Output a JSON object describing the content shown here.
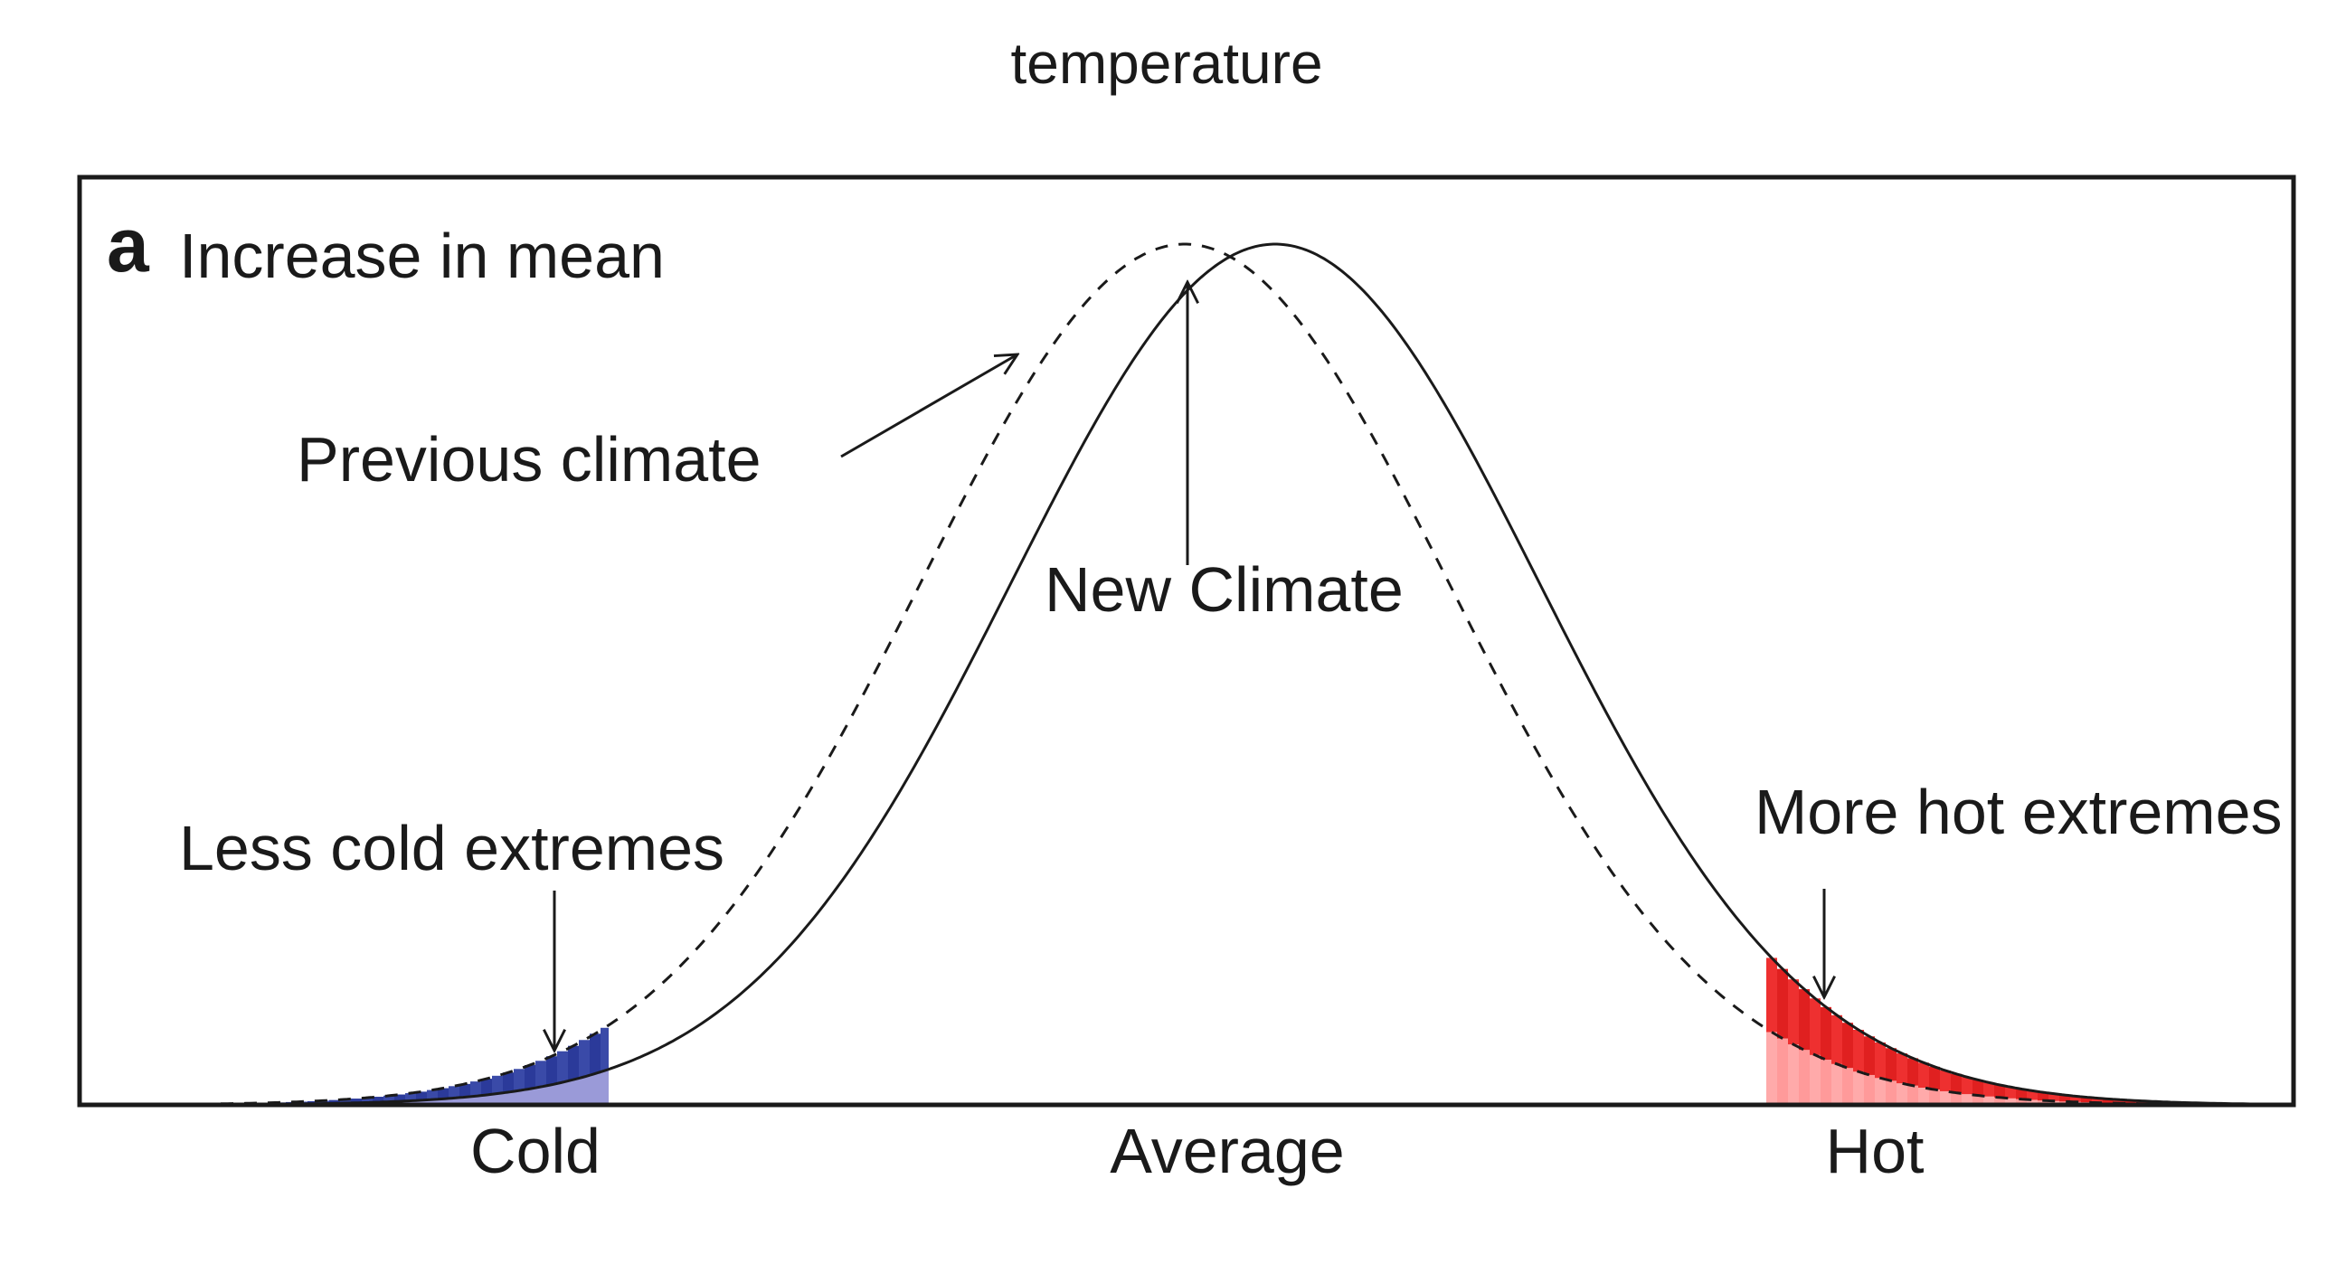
{
  "title": "temperature",
  "panel": {
    "letter": "a",
    "heading": "Increase in mean"
  },
  "labels": {
    "previous": "Previous climate",
    "new": "New Climate",
    "cold_extremes": "Less cold extremes",
    "hot_extremes": "More hot extremes"
  },
  "axis": {
    "ticks": [
      "Cold",
      "Average",
      "Hot"
    ]
  },
  "colors": {
    "line": "#1a1a1a",
    "cold_dark": "#2b3a9a",
    "cold_light": "#9a9ad8",
    "hot_dark": "#e02020",
    "hot_light": "#ff9a9a"
  }
}
